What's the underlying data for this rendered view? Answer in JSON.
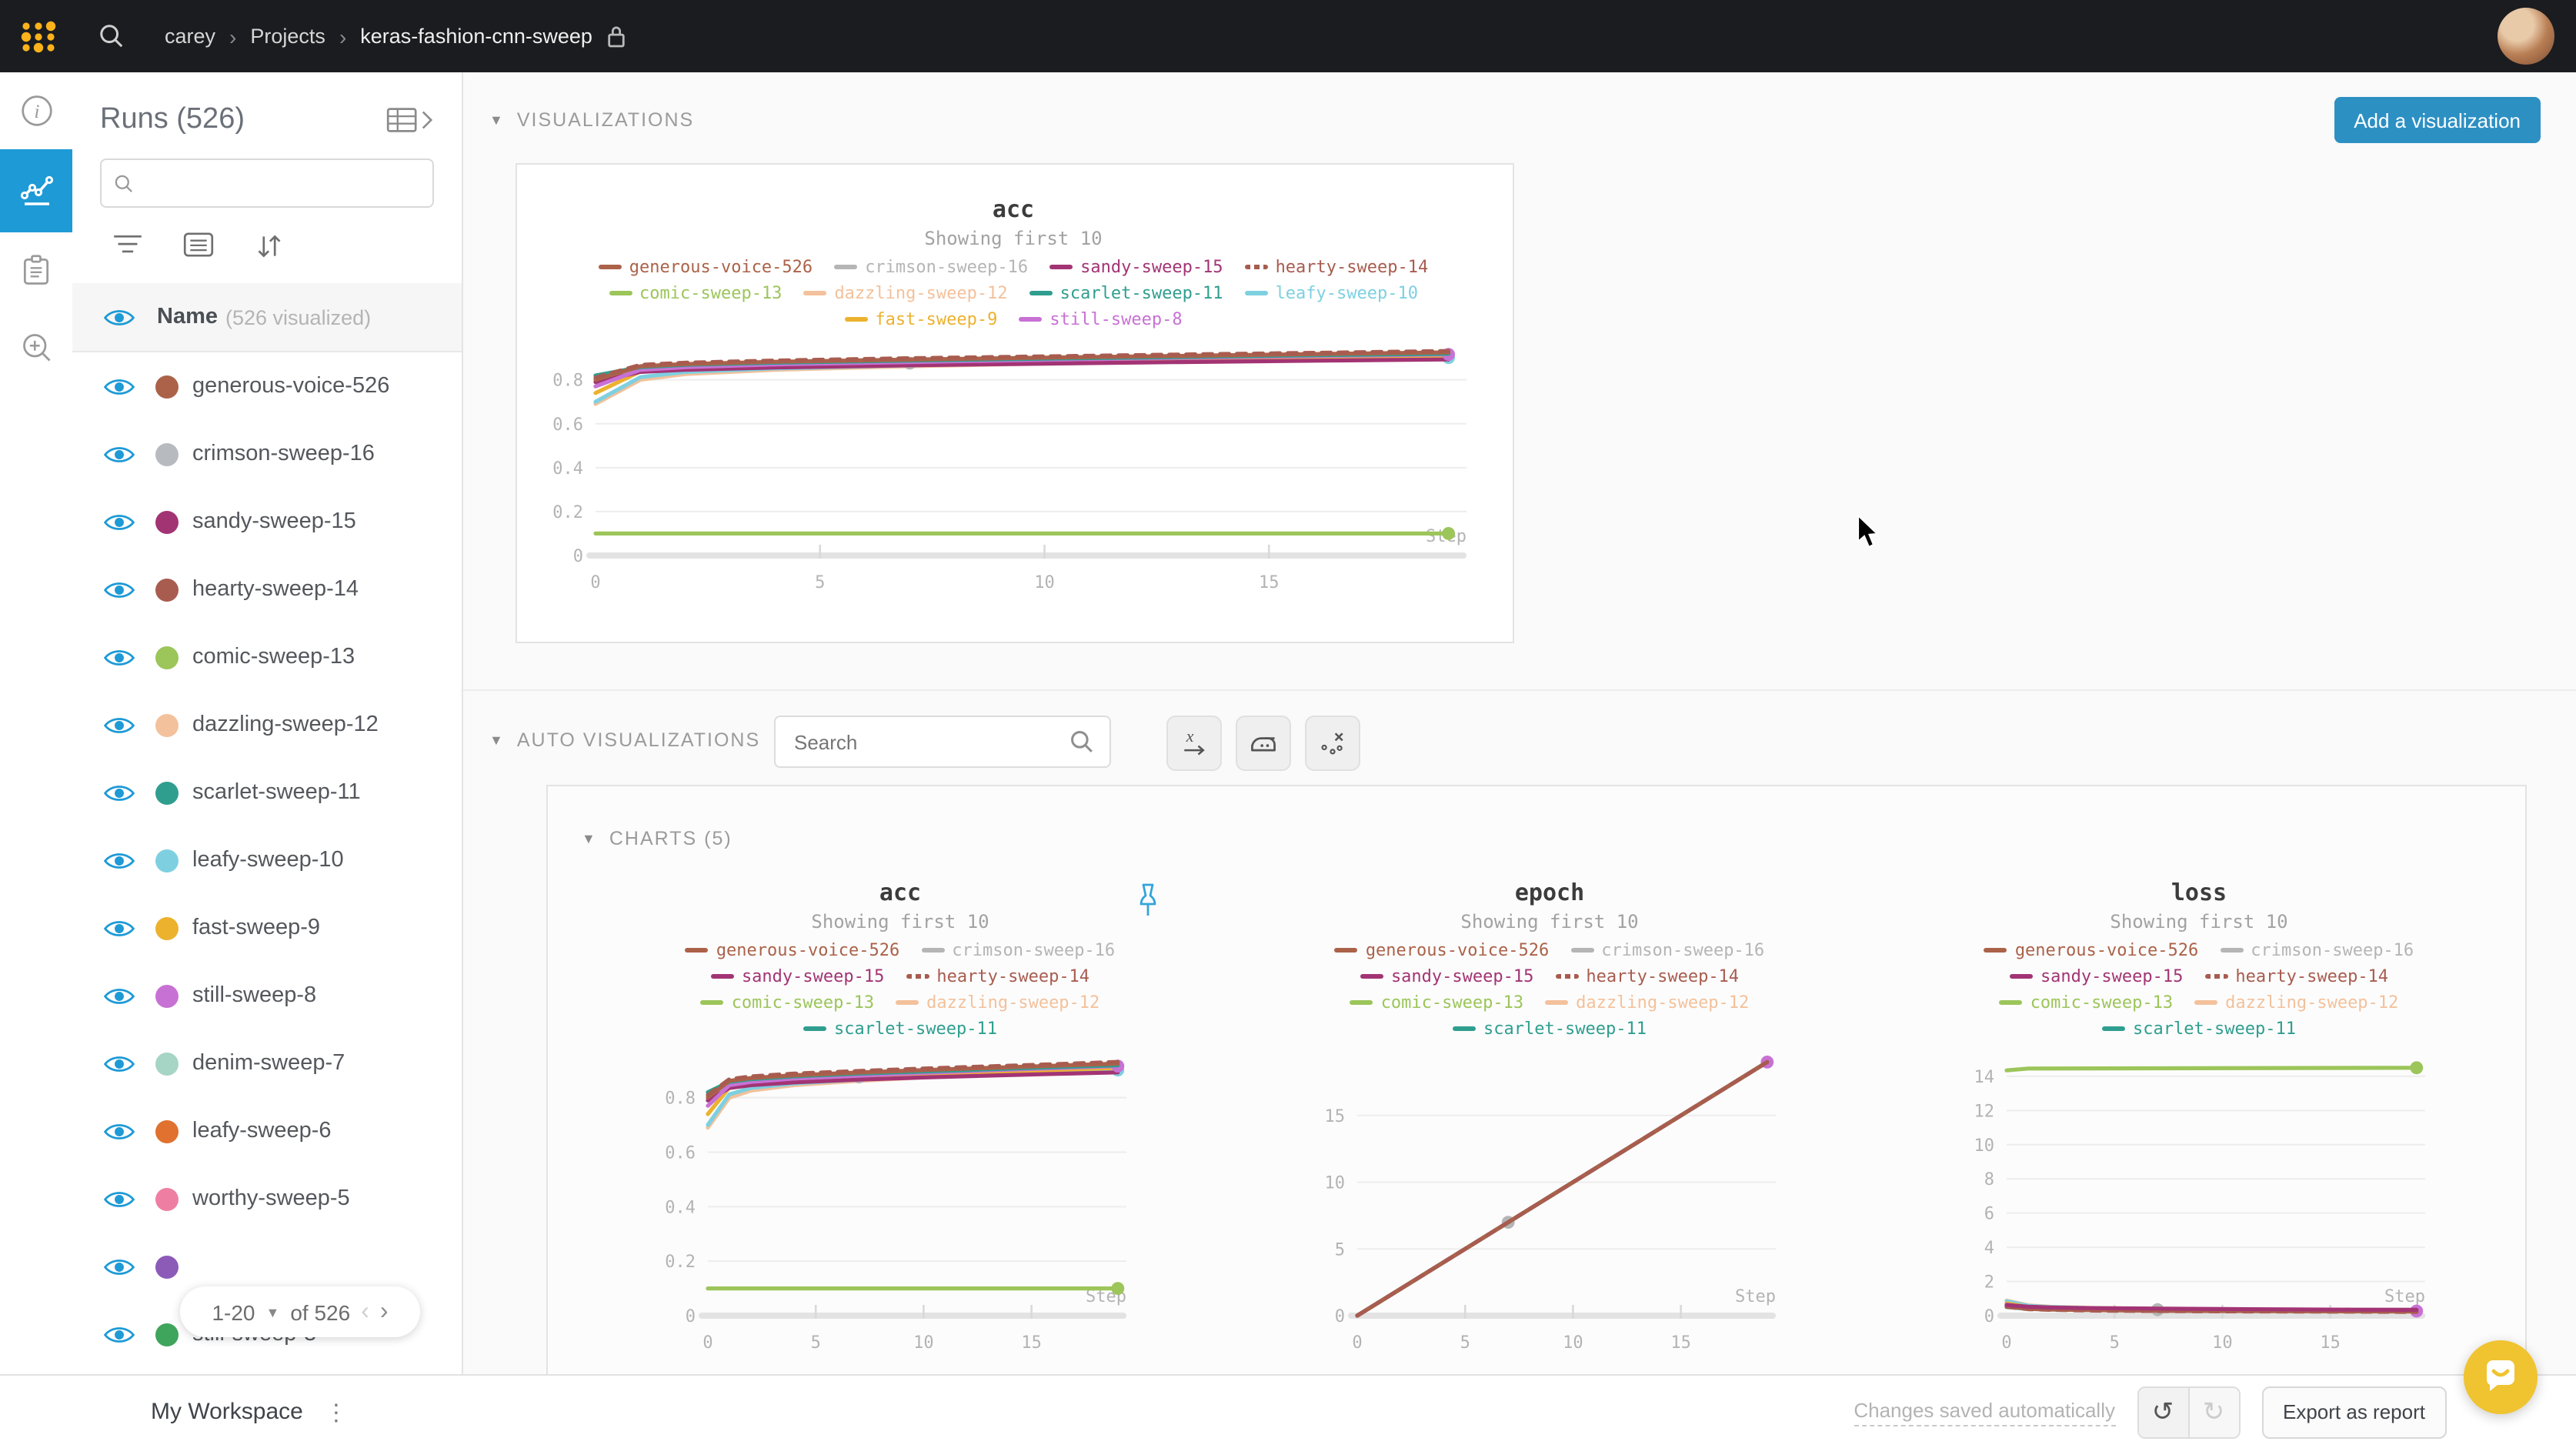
{
  "topbar": {
    "breadcrumb": [
      "carey",
      "Projects",
      "keras-fashion-cnn-sweep"
    ],
    "accent_yellow": "#fcb21a"
  },
  "left_rail": {
    "items": [
      "info",
      "line-chart",
      "notes",
      "zoom-in"
    ],
    "active": "line-chart",
    "active_color": "#1e9ad6"
  },
  "runs_panel": {
    "title": "Runs (526)",
    "search_placeholder": "",
    "header_name": "Name",
    "header_sub": "(526 visualized)",
    "eye_color": "#1e9ad6",
    "runs": [
      {
        "name": "generous-voice-526",
        "color": "#ab6249"
      },
      {
        "name": "crimson-sweep-16",
        "color": "#b7bbc0"
      },
      {
        "name": "sandy-sweep-15",
        "color": "#a23474"
      },
      {
        "name": "hearty-sweep-14",
        "color": "#a85c4f"
      },
      {
        "name": "comic-sweep-13",
        "color": "#9cc55a"
      },
      {
        "name": "dazzling-sweep-12",
        "color": "#f3c19b"
      },
      {
        "name": "scarlet-sweep-11",
        "color": "#2f9e8f"
      },
      {
        "name": "leafy-sweep-10",
        "color": "#7ed0e0"
      },
      {
        "name": "fast-sweep-9",
        "color": "#ecb22e"
      },
      {
        "name": "still-sweep-8",
        "color": "#c871d4"
      },
      {
        "name": "denim-sweep-7",
        "color": "#a6d4c5"
      },
      {
        "name": "leafy-sweep-6",
        "color": "#e0712e"
      },
      {
        "name": "worthy-sweep-5",
        "color": "#ef7fa2"
      },
      {
        "name": "",
        "color": "#8c5bb8"
      },
      {
        "name": "still-sweep-3",
        "color": "#3fa45c"
      }
    ],
    "pagination": {
      "range": "1-20",
      "of": "of 526"
    }
  },
  "main": {
    "viz_header": "VISUALIZATIONS",
    "add_button": "Add a visualization",
    "auto_header": "AUTO VISUALIZATIONS",
    "search_placeholder": "Search",
    "charts_header": "CHARTS (5)"
  },
  "footer": {
    "workspace": "My Workspace",
    "saved": "Changes saved automatically",
    "export": "Export as report"
  },
  "chart_data": [
    {
      "type": "line",
      "title": "acc",
      "subtitle": "Showing first 10",
      "xlabel": "Step",
      "x_ticks": [
        0,
        5,
        10,
        15
      ],
      "y_ticks": [
        0,
        0.2,
        0.4,
        0.6,
        0.8
      ],
      "xlim": [
        0,
        19.4
      ],
      "ylim": [
        0,
        0.96
      ],
      "series": [
        {
          "name": "generous-voice-526",
          "color": "#ab6249",
          "z": 9,
          "points": [
            [
              0,
              0.8
            ],
            [
              1,
              0.862
            ],
            [
              2,
              0.872
            ],
            [
              4,
              0.882
            ],
            [
              7,
              0.892
            ],
            [
              10,
              0.901
            ],
            [
              13,
              0.909
            ],
            [
              16,
              0.917
            ],
            [
              19,
              0.925
            ]
          ]
        },
        {
          "name": "crimson-sweep-16",
          "color": "#b5b5b5",
          "z": 5,
          "end_dot": true,
          "points": [
            [
              0,
              0.79
            ],
            [
              1,
              0.846
            ],
            [
              2,
              0.856
            ],
            [
              4,
              0.866
            ],
            [
              7,
              0.876
            ]
          ]
        },
        {
          "name": "sandy-sweep-15",
          "color": "#a23474",
          "z": 6,
          "points": [
            [
              0,
              0.79
            ],
            [
              1,
              0.836
            ],
            [
              2,
              0.846
            ],
            [
              4,
              0.856
            ],
            [
              7,
              0.866
            ],
            [
              10,
              0.874
            ],
            [
              13,
              0.881
            ],
            [
              16,
              0.887
            ],
            [
              19,
              0.893
            ]
          ]
        },
        {
          "name": "hearty-sweep-14",
          "color": "#a85c4f",
          "dash": true,
          "z": 10,
          "points": [
            [
              0,
              0.81
            ],
            [
              1,
              0.868
            ],
            [
              2,
              0.878
            ],
            [
              4,
              0.888
            ],
            [
              7,
              0.898
            ],
            [
              10,
              0.907
            ],
            [
              13,
              0.915
            ],
            [
              16,
              0.923
            ],
            [
              19,
              0.931
            ]
          ]
        },
        {
          "name": "comic-sweep-13",
          "color": "#9cc55a",
          "z": 1,
          "end_dot": true,
          "points": [
            [
              0,
              0.1
            ],
            [
              19,
              0.1
            ]
          ]
        },
        {
          "name": "dazzling-sweep-12",
          "color": "#f3c19b",
          "z": 2,
          "points": [
            [
              0,
              0.69
            ],
            [
              1,
              0.8
            ],
            [
              2,
              0.826
            ],
            [
              4,
              0.846
            ],
            [
              7,
              0.862
            ],
            [
              10,
              0.874
            ],
            [
              13,
              0.884
            ],
            [
              16,
              0.892
            ],
            [
              19,
              0.899
            ]
          ]
        },
        {
          "name": "scarlet-sweep-11",
          "color": "#2f9e8f",
          "z": 8,
          "points": [
            [
              0,
              0.82
            ],
            [
              1,
              0.858
            ],
            [
              2,
              0.868
            ],
            [
              4,
              0.878
            ],
            [
              7,
              0.888
            ],
            [
              10,
              0.896
            ],
            [
              13,
              0.904
            ],
            [
              16,
              0.912
            ],
            [
              19,
              0.919
            ]
          ]
        },
        {
          "name": "leafy-sweep-10",
          "color": "#7ed0e0",
          "z": 3,
          "end_dot": true,
          "points": [
            [
              0,
              0.7
            ],
            [
              1,
              0.812
            ],
            [
              2,
              0.836
            ],
            [
              4,
              0.852
            ],
            [
              7,
              0.866
            ],
            [
              10,
              0.877
            ],
            [
              13,
              0.886
            ],
            [
              16,
              0.894
            ],
            [
              19,
              0.901
            ]
          ]
        },
        {
          "name": "fast-sweep-9",
          "color": "#ecb22e",
          "z": 4,
          "points": [
            [
              0,
              0.74
            ],
            [
              1,
              0.838
            ],
            [
              2,
              0.852
            ],
            [
              4,
              0.864
            ],
            [
              7,
              0.876
            ],
            [
              10,
              0.886
            ],
            [
              13,
              0.894
            ],
            [
              16,
              0.902
            ],
            [
              19,
              0.909
            ]
          ]
        },
        {
          "name": "still-sweep-8",
          "color": "#c871d4",
          "z": 7,
          "end_dot": true,
          "points": [
            [
              0,
              0.77
            ],
            [
              1,
              0.846
            ],
            [
              2,
              0.858
            ],
            [
              4,
              0.87
            ],
            [
              7,
              0.881
            ],
            [
              10,
              0.891
            ],
            [
              13,
              0.9
            ],
            [
              16,
              0.908
            ],
            [
              19,
              0.916
            ]
          ]
        }
      ]
    },
    {
      "type": "line",
      "title": "epoch",
      "subtitle": "Showing first 10",
      "xlabel": "Step",
      "x_ticks": [
        0,
        5,
        10,
        15
      ],
      "y_ticks": [
        0,
        5,
        10,
        15
      ],
      "xlim": [
        0,
        19.4
      ],
      "ylim": [
        0,
        19.6
      ],
      "series": [
        {
          "name": "generous-voice-526",
          "color": "#ab6249",
          "z": 9,
          "points": [
            [
              0,
              0
            ],
            [
              19,
              19
            ]
          ]
        },
        {
          "name": "crimson-sweep-16",
          "color": "#b5b5b5",
          "z": 5,
          "end_dot": true,
          "points": [
            [
              0,
              0
            ],
            [
              7,
              7
            ]
          ]
        },
        {
          "name": "sandy-sweep-15",
          "color": "#a23474",
          "z": 6,
          "points": [
            [
              0,
              0
            ],
            [
              19,
              19
            ]
          ]
        },
        {
          "name": "hearty-sweep-14",
          "color": "#a85c4f",
          "dash": true,
          "z": 10,
          "points": [
            [
              0,
              0
            ],
            [
              19,
              19
            ]
          ]
        },
        {
          "name": "comic-sweep-13",
          "color": "#9cc55a",
          "z": 1,
          "points": [
            [
              0,
              0
            ],
            [
              19,
              19
            ]
          ]
        },
        {
          "name": "dazzling-sweep-12",
          "color": "#f3c19b",
          "z": 2,
          "points": [
            [
              0,
              0
            ],
            [
              19,
              19
            ]
          ]
        },
        {
          "name": "scarlet-sweep-11",
          "color": "#2f9e8f",
          "z": 8,
          "points": [
            [
              0,
              0
            ],
            [
              19,
              19
            ]
          ]
        },
        {
          "name": "leafy-sweep-10",
          "color": "#7ed0e0",
          "z": 3,
          "points": [
            [
              0,
              0
            ],
            [
              19,
              19
            ]
          ]
        },
        {
          "name": "fast-sweep-9",
          "color": "#ecb22e",
          "z": 4,
          "points": [
            [
              0,
              0
            ],
            [
              19,
              19
            ]
          ]
        },
        {
          "name": "still-sweep-8",
          "color": "#c871d4",
          "z": 7,
          "end_dot": true,
          "points": [
            [
              0,
              0
            ],
            [
              19,
              19
            ]
          ]
        }
      ]
    },
    {
      "type": "line",
      "title": "loss",
      "subtitle": "Showing first 10",
      "xlabel": "Step",
      "x_ticks": [
        0,
        5,
        10,
        15
      ],
      "y_ticks": [
        0,
        2,
        4,
        6,
        8,
        10,
        12,
        14
      ],
      "xlim": [
        0,
        19.4
      ],
      "ylim": [
        0,
        15.3
      ],
      "series": [
        {
          "name": "generous-voice-526",
          "color": "#ab6249",
          "z": 9,
          "points": [
            [
              0,
              0.55
            ],
            [
              1,
              0.4
            ],
            [
              2,
              0.36
            ],
            [
              4,
              0.32
            ],
            [
              7,
              0.29
            ],
            [
              10,
              0.27
            ],
            [
              13,
              0.26
            ],
            [
              16,
              0.25
            ],
            [
              19,
              0.24
            ]
          ]
        },
        {
          "name": "crimson-sweep-16",
          "color": "#b5b5b5",
          "z": 5,
          "end_dot": true,
          "points": [
            [
              0,
              0.58
            ],
            [
              1,
              0.46
            ],
            [
              2,
              0.42
            ],
            [
              4,
              0.38
            ],
            [
              7,
              0.35
            ]
          ]
        },
        {
          "name": "sandy-sweep-15",
          "color": "#a23474",
          "z": 11,
          "points": [
            [
              0,
              0.62
            ],
            [
              1,
              0.52
            ],
            [
              2,
              0.48
            ],
            [
              4,
              0.44
            ],
            [
              7,
              0.41
            ],
            [
              10,
              0.39
            ],
            [
              13,
              0.37
            ],
            [
              16,
              0.35
            ],
            [
              19,
              0.34
            ]
          ]
        },
        {
          "name": "hearty-sweep-14",
          "color": "#a85c4f",
          "dash": true,
          "z": 10,
          "points": [
            [
              0,
              0.52
            ],
            [
              1,
              0.38
            ],
            [
              2,
              0.34
            ],
            [
              4,
              0.3
            ],
            [
              7,
              0.27
            ],
            [
              10,
              0.25
            ],
            [
              13,
              0.24
            ],
            [
              16,
              0.23
            ],
            [
              19,
              0.22
            ]
          ]
        },
        {
          "name": "comic-sweep-13",
          "color": "#9cc55a",
          "z": 1,
          "end_dot": true,
          "points": [
            [
              0,
              14.35
            ],
            [
              1,
              14.45
            ],
            [
              19,
              14.5
            ]
          ]
        },
        {
          "name": "dazzling-sweep-12",
          "color": "#f3c19b",
          "z": 2,
          "points": [
            [
              0,
              0.88
            ],
            [
              1,
              0.6
            ],
            [
              2,
              0.52
            ],
            [
              4,
              0.45
            ],
            [
              7,
              0.4
            ],
            [
              10,
              0.37
            ],
            [
              13,
              0.34
            ],
            [
              16,
              0.32
            ],
            [
              19,
              0.31
            ]
          ]
        },
        {
          "name": "scarlet-sweep-11",
          "color": "#2f9e8f",
          "z": 8,
          "points": [
            [
              0,
              0.5
            ],
            [
              1,
              0.4
            ],
            [
              2,
              0.36
            ],
            [
              4,
              0.33
            ],
            [
              7,
              0.3
            ],
            [
              10,
              0.28
            ],
            [
              13,
              0.27
            ],
            [
              16,
              0.26
            ],
            [
              19,
              0.25
            ]
          ]
        },
        {
          "name": "leafy-sweep-10",
          "color": "#7ed0e0",
          "z": 3,
          "points": [
            [
              0,
              0.85
            ],
            [
              1,
              0.58
            ],
            [
              2,
              0.5
            ],
            [
              4,
              0.43
            ],
            [
              7,
              0.38
            ],
            [
              10,
              0.35
            ],
            [
              13,
              0.33
            ],
            [
              16,
              0.31
            ],
            [
              19,
              0.3
            ]
          ]
        },
        {
          "name": "fast-sweep-9",
          "color": "#ecb22e",
          "z": 4,
          "points": [
            [
              0,
              0.72
            ],
            [
              1,
              0.5
            ],
            [
              2,
              0.44
            ],
            [
              4,
              0.39
            ],
            [
              7,
              0.35
            ],
            [
              10,
              0.32
            ],
            [
              13,
              0.3
            ],
            [
              16,
              0.29
            ],
            [
              19,
              0.28
            ]
          ]
        },
        {
          "name": "still-sweep-8",
          "color": "#c871d4",
          "z": 7,
          "end_dot": true,
          "points": [
            [
              0,
              0.65
            ],
            [
              1,
              0.48
            ],
            [
              2,
              0.43
            ],
            [
              4,
              0.38
            ],
            [
              7,
              0.34
            ],
            [
              10,
              0.31
            ],
            [
              13,
              0.3
            ],
            [
              16,
              0.28
            ],
            [
              19,
              0.27
            ]
          ]
        }
      ]
    }
  ]
}
